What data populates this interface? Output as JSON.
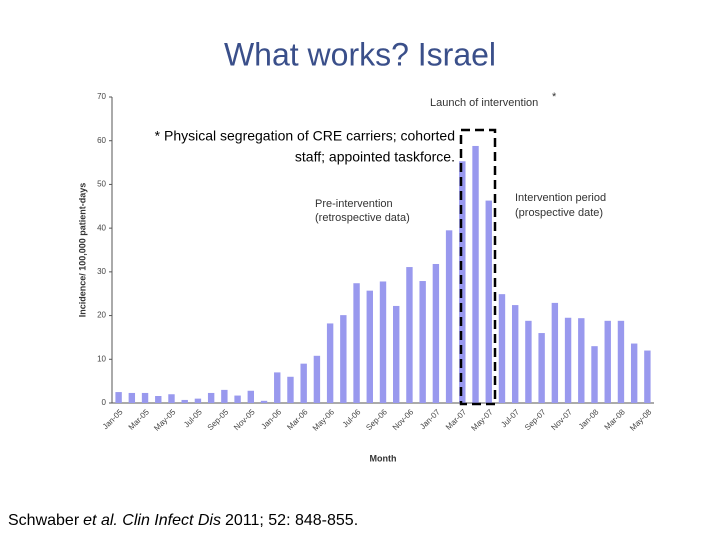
{
  "chart_data": {
    "type": "bar",
    "title": "What works? Israel",
    "ylabel": "Incidence/ 100,000 patient-days",
    "xlabel": "Month",
    "categories": [
      "Jan-05",
      null,
      "Mar-05",
      null,
      "May-05",
      null,
      "Jul-05",
      null,
      "Sep-05",
      null,
      "Nov-05",
      null,
      "Jan-06",
      null,
      "Mar-06",
      null,
      "May-06",
      null,
      "Jul-06",
      null,
      "Sep-06",
      null,
      "Nov-06",
      null,
      "Jan-07",
      null,
      "Mar-07",
      null,
      "May-07",
      null,
      "Jul-07",
      null,
      "Sep-07",
      null,
      "Nov-07",
      null,
      "Jan-08",
      null,
      "Mar-08",
      null,
      "May-08"
    ],
    "values": [
      2.5,
      2.3,
      2.3,
      1.6,
      2.0,
      0.7,
      1.0,
      2.3,
      3.0,
      1.7,
      2.8,
      0.5,
      7.0,
      6.0,
      9.0,
      10.8,
      18.2,
      20.1,
      27.4,
      25.7,
      27.8,
      22.2,
      31.1,
      27.9,
      31.8,
      39.5,
      55.3,
      58.8,
      46.3,
      24.9,
      22.4,
      18.8,
      16.0,
      22.9,
      19.5,
      19.4,
      13.0,
      18.8,
      18.8,
      13.6,
      12.0
    ],
    "color": "#9999ee",
    "ylim": [
      0,
      70
    ],
    "yticks": [
      0,
      10,
      20,
      30,
      40,
      50,
      60,
      70
    ],
    "grid": false,
    "annotations": {
      "launch": "Launch of intervention",
      "launch_star": "*",
      "footnote": [
        "* Physical segregation of CRE carriers; cohorted",
        "staff; appointed taskforce."
      ],
      "pre": [
        "Pre-intervention",
        "(retrospective data)"
      ],
      "post": [
        "Intervention period",
        "(prospective date)"
      ]
    }
  },
  "citation": [
    "Schwaber",
    "et al. Clin Infect Dis",
    "2011; 52: 848-855."
  ]
}
